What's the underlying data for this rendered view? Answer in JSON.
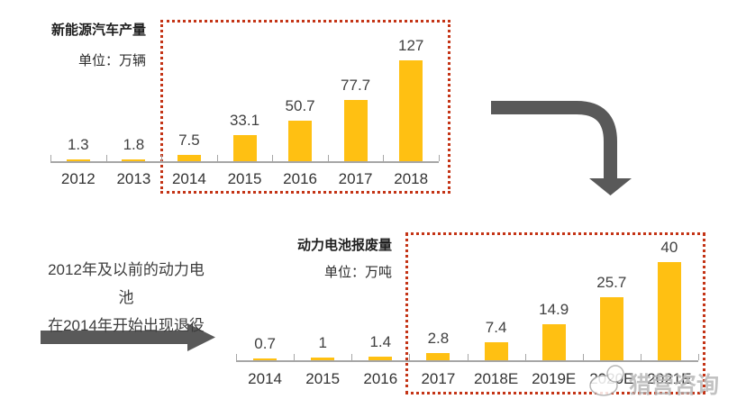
{
  "page": {
    "watermark_text": "猎营咨询",
    "annotation": {
      "line1": "2012年及以前的动力电池",
      "line2": "在2014年开始出现退役"
    }
  },
  "colors": {
    "bar": "#FFC012",
    "axis": "#A6A6A6",
    "highlight_border": "#C43416",
    "arrow": "#595959",
    "label_text": "#404040"
  },
  "chart_data": [
    {
      "type": "bar",
      "title": "新能源汽车产量",
      "unit_label": "单位：万辆",
      "categories": [
        "2012",
        "2013",
        "2014",
        "2015",
        "2016",
        "2017",
        "2018"
      ],
      "values": [
        1.3,
        1.8,
        7.5,
        33.1,
        50.7,
        77.7,
        127
      ],
      "highlighted_categories": [
        "2014",
        "2015",
        "2016",
        "2017",
        "2018"
      ],
      "ylim": [
        0,
        140
      ],
      "grid": false,
      "legend": false,
      "bar_color": "#FFC012",
      "data_labels": true
    },
    {
      "type": "bar",
      "title": "动力电池报废量",
      "unit_label": "单位：万吨",
      "categories": [
        "2014",
        "2015",
        "2016",
        "2017",
        "2018E",
        "2019E",
        "2020E",
        "2021E"
      ],
      "values": [
        0.7,
        1,
        1.4,
        2.8,
        7.4,
        14.9,
        25.7,
        40
      ],
      "highlighted_categories": [
        "2017",
        "2018E",
        "2019E",
        "2020E",
        "2021E"
      ],
      "ylim": [
        0,
        45
      ],
      "grid": false,
      "legend": false,
      "bar_color": "#FFC012",
      "data_labels": true
    }
  ]
}
